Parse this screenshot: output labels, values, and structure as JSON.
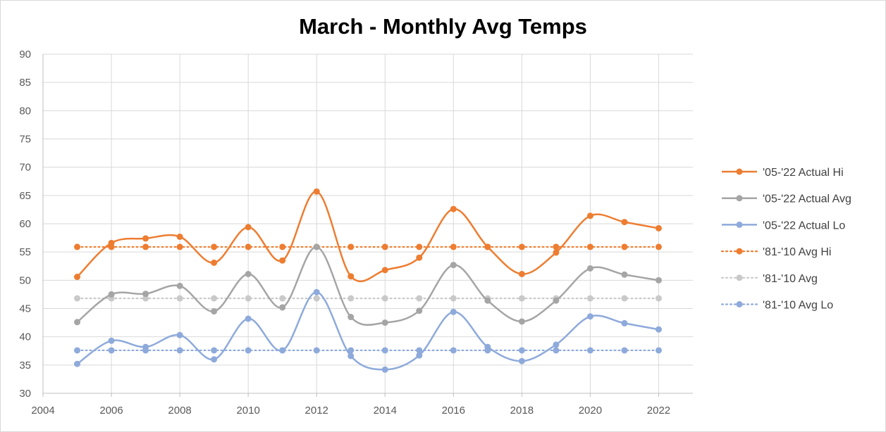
{
  "chart_data": {
    "type": "scatter",
    "title": "March - Monthly Avg Temps",
    "xlabel": "",
    "ylabel": "",
    "xlim": [
      2004,
      2023
    ],
    "ylim": [
      30,
      90
    ],
    "x_ticks": [
      2004,
      2006,
      2008,
      2010,
      2012,
      2014,
      2016,
      2018,
      2020,
      2022
    ],
    "y_ticks": [
      30,
      35,
      40,
      45,
      50,
      55,
      60,
      65,
      70,
      75,
      80,
      85,
      90
    ],
    "grid": true,
    "legend_position": "right",
    "x": [
      2005,
      2006,
      2007,
      2008,
      2009,
      2010,
      2011,
      2012,
      2013,
      2014,
      2015,
      2016,
      2017,
      2018,
      2019,
      2020,
      2021,
      2022
    ],
    "series": [
      {
        "name": "'05-'22 Actual Hi",
        "color": "#ed7d31",
        "line": "smooth",
        "values": [
          50.6,
          56.6,
          57.4,
          57.7,
          53.1,
          59.4,
          53.5,
          65.7,
          50.7,
          51.8,
          54.0,
          62.6,
          55.9,
          51.1,
          54.9,
          61.4,
          60.3,
          59.2
        ]
      },
      {
        "name": "'05-'22 Actual Avg",
        "color": "#a5a5a5",
        "line": "smooth",
        "values": [
          42.6,
          47.5,
          47.6,
          49.0,
          44.5,
          51.1,
          45.2,
          55.9,
          43.5,
          42.5,
          44.6,
          52.7,
          46.4,
          42.7,
          46.4,
          52.1,
          51.0,
          50.0
        ]
      },
      {
        "name": "'05-'22 Actual Lo",
        "color": "#8eaadb",
        "line": "smooth",
        "values": [
          35.2,
          39.3,
          38.2,
          40.3,
          36.0,
          43.2,
          37.6,
          47.9,
          36.6,
          34.2,
          36.7,
          44.4,
          38.2,
          35.7,
          38.6,
          43.6,
          42.4,
          41.3
        ]
      },
      {
        "name": "'81-'10 Avg Hi",
        "color": "#ed7d31",
        "line": "dotted",
        "values": [
          55.9,
          55.9,
          55.9,
          55.9,
          55.9,
          55.9,
          55.9,
          55.9,
          55.9,
          55.9,
          55.9,
          55.9,
          55.9,
          55.9,
          55.9,
          55.9,
          55.9,
          55.9
        ]
      },
      {
        "name": "'81-'10 Avg",
        "color": "#c9c9c9",
        "line": "dotted",
        "values": [
          46.8,
          46.8,
          46.8,
          46.8,
          46.8,
          46.8,
          46.8,
          46.8,
          46.8,
          46.8,
          46.8,
          46.8,
          46.8,
          46.8,
          46.8,
          46.8,
          46.8,
          46.8
        ]
      },
      {
        "name": "'81-'10 Avg Lo",
        "color": "#8eaadb",
        "line": "dotted",
        "values": [
          37.6,
          37.6,
          37.6,
          37.6,
          37.6,
          37.6,
          37.6,
          37.6,
          37.6,
          37.6,
          37.6,
          37.6,
          37.6,
          37.6,
          37.6,
          37.6,
          37.6,
          37.6
        ]
      }
    ]
  }
}
